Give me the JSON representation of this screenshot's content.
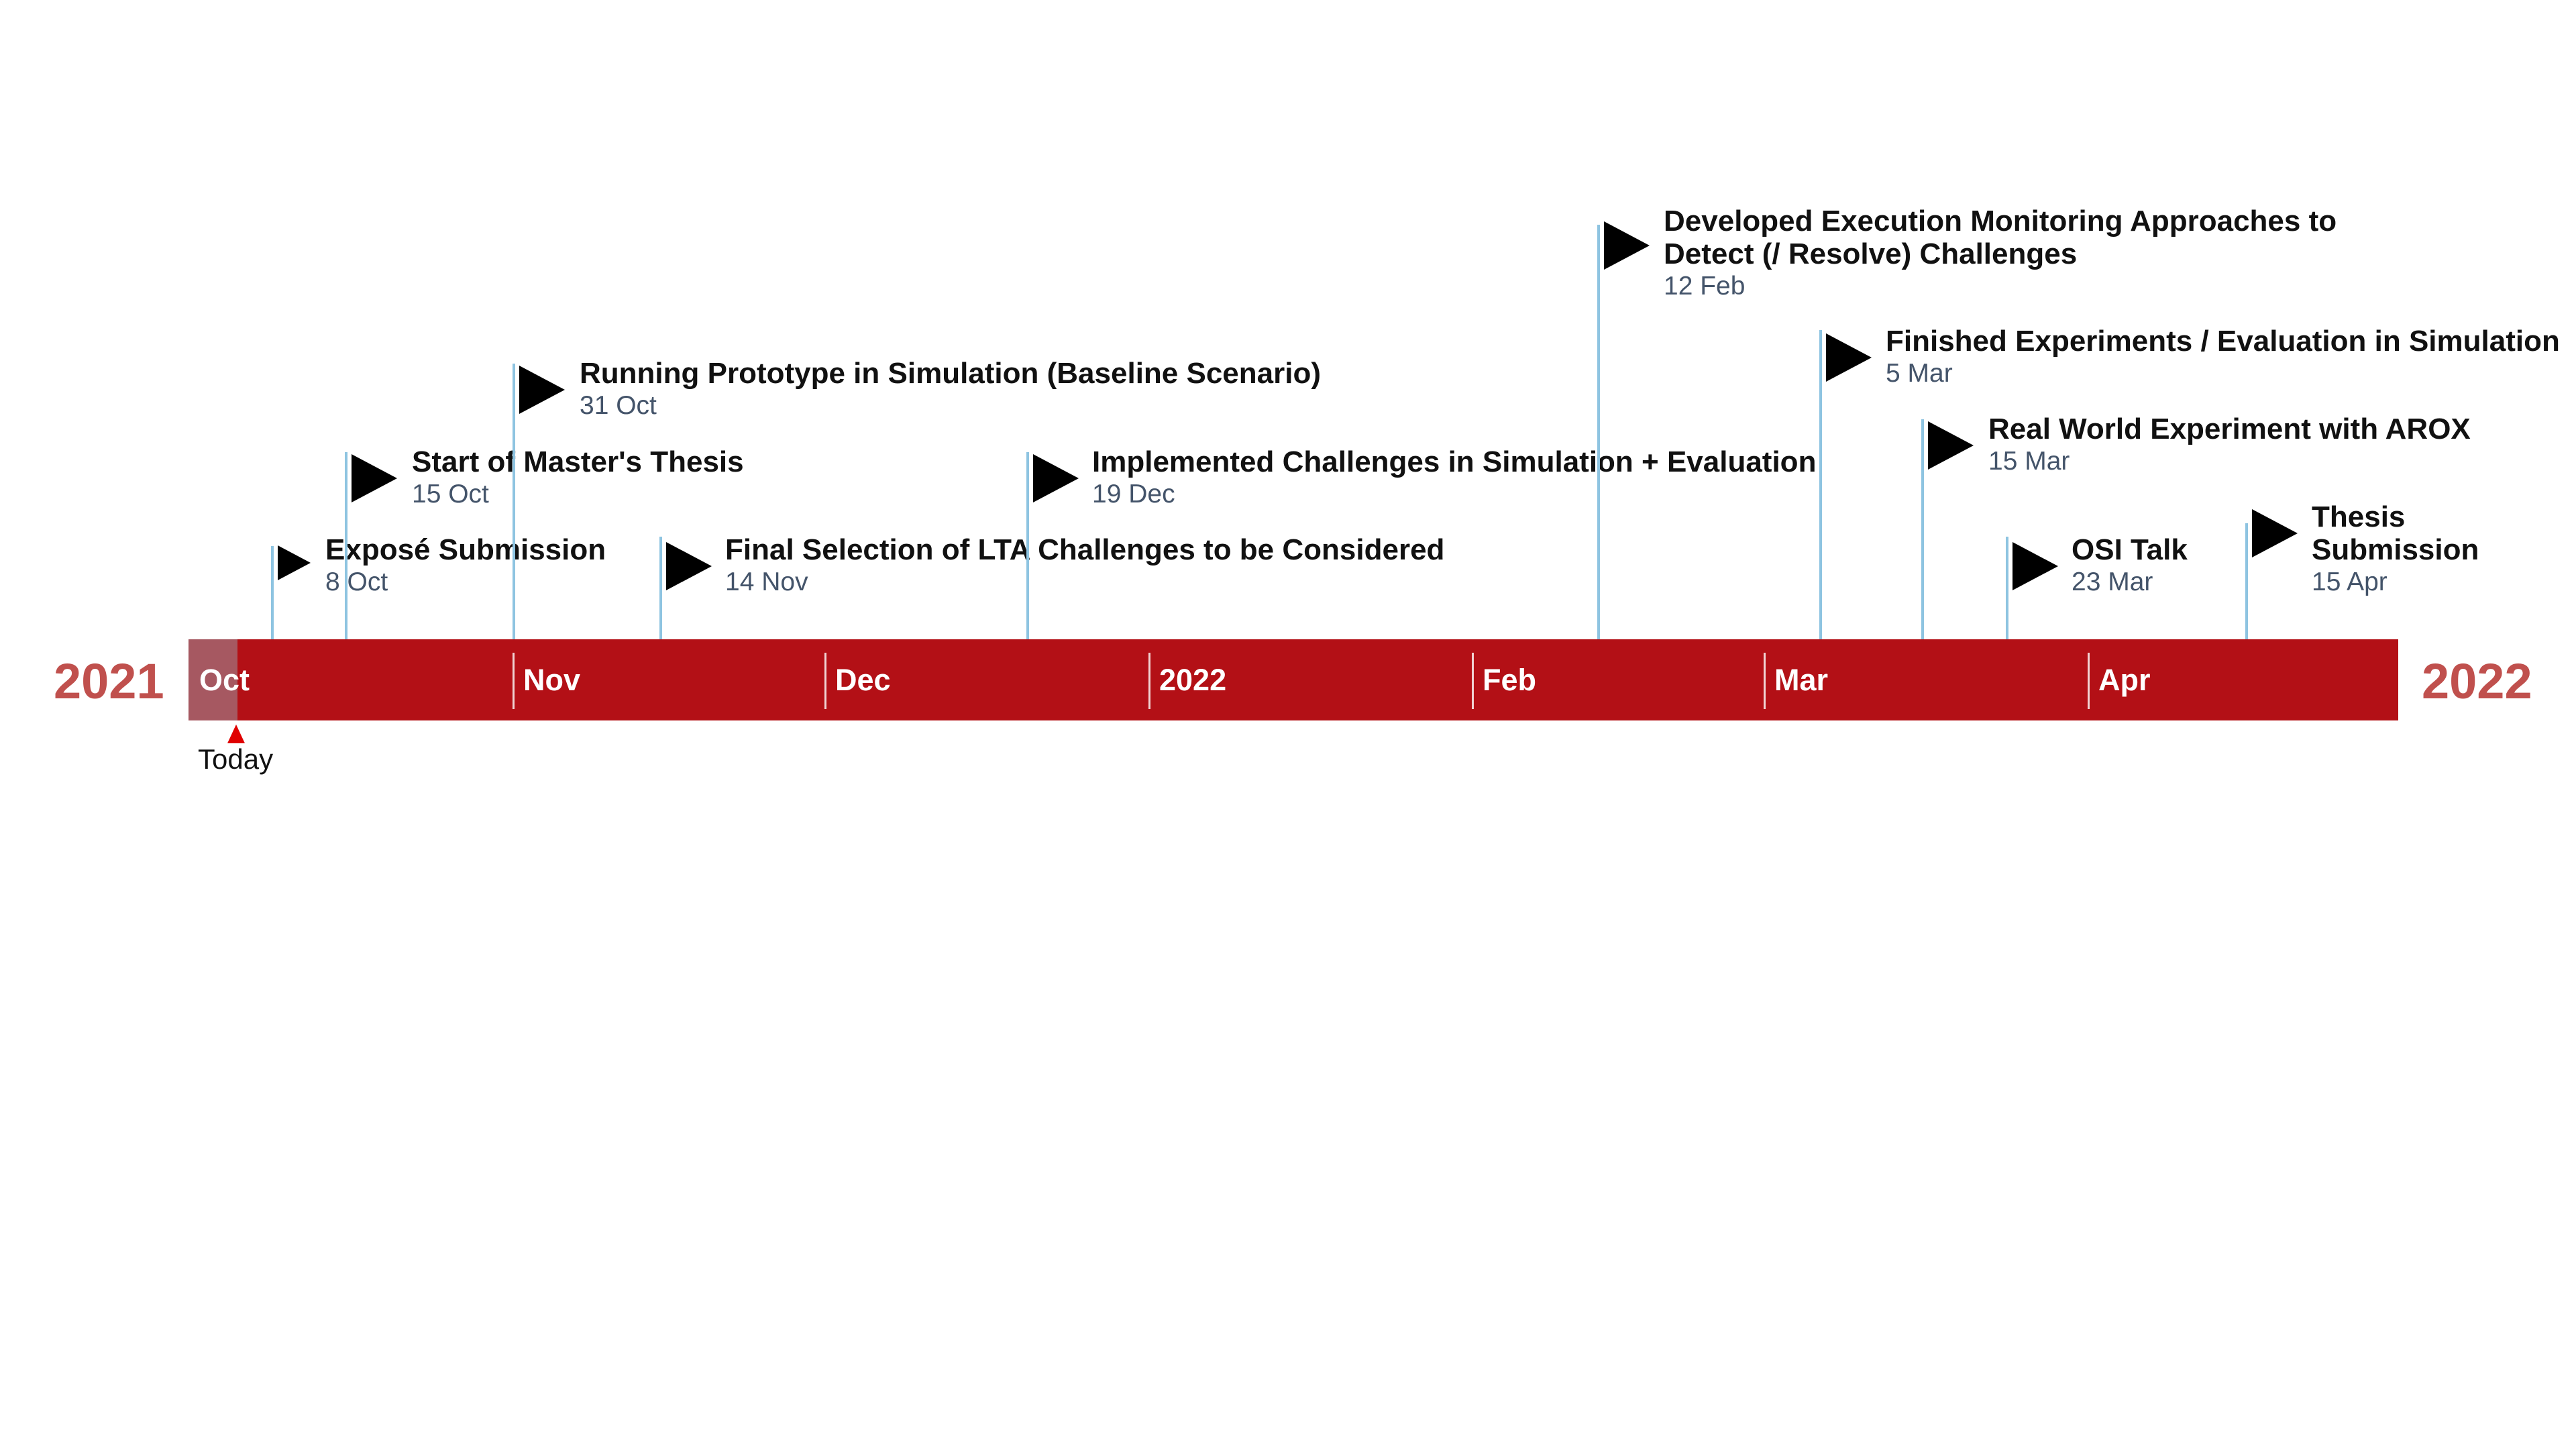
{
  "timeline": {
    "start_year": "2021",
    "end_year": "2022",
    "today_label": "Today",
    "months": [
      "Oct",
      "Nov",
      "Dec",
      "2022",
      "Feb",
      "Mar",
      "Apr"
    ],
    "milestones": [
      {
        "title": "Exposé Submission",
        "date": "8 Oct"
      },
      {
        "title": "Start of Master's Thesis",
        "date": "15 Oct"
      },
      {
        "title": "Running Prototype in Simulation (Baseline Scenario)",
        "date": "31 Oct"
      },
      {
        "title": "Final Selection of LTA Challenges to be Considered",
        "date": "14 Nov"
      },
      {
        "title": "Implemented Challenges in Simulation + Evaluation",
        "date": "19 Dec"
      },
      {
        "title": "Developed Execution Monitoring Approaches to\nDetect (/ Resolve) Challenges",
        "date": "12 Feb"
      },
      {
        "title": "Finished Experiments / Evaluation in Simulation",
        "date": "5 Mar"
      },
      {
        "title": "Real World Experiment with AROX",
        "date": "15 Mar"
      },
      {
        "title": "OSI Talk",
        "date": "23 Mar"
      },
      {
        "title": "Thesis\nSubmission",
        "date": "15 Apr"
      }
    ]
  },
  "colors": {
    "bar": "#b31016",
    "past_segment": "#a65861",
    "year_text": "#c0504d",
    "stem": "#8ec4e1",
    "flag": "#000000",
    "today_marker": "#e00000"
  }
}
